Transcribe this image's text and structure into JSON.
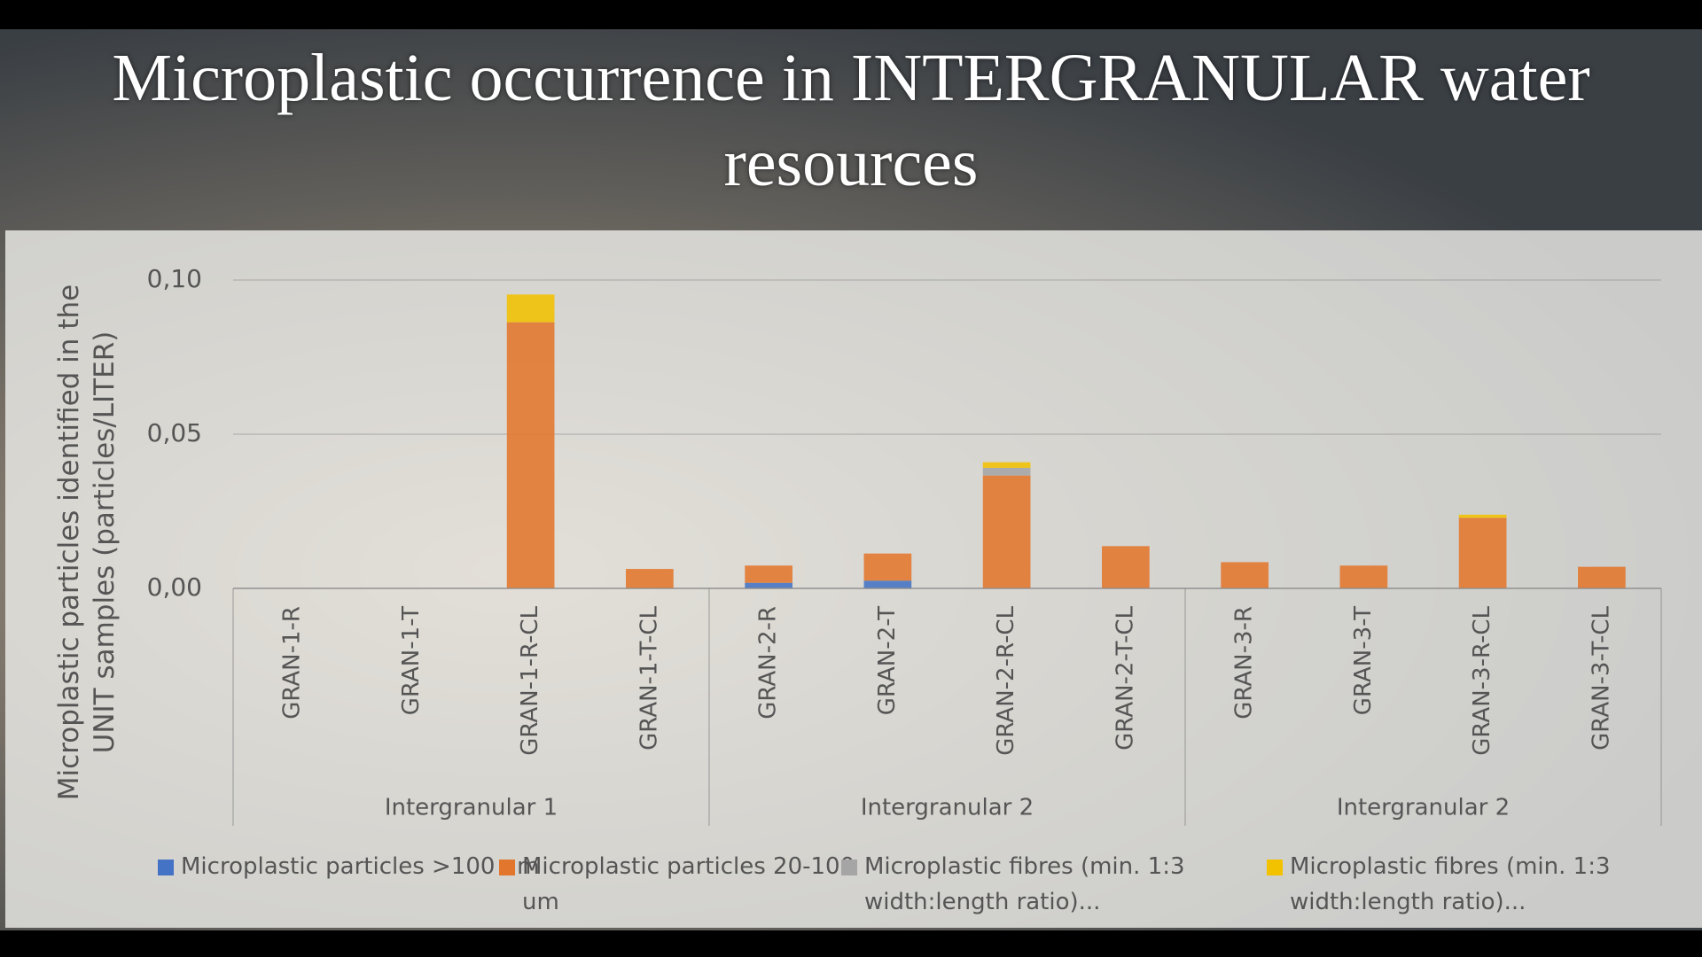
{
  "chart_data": {
    "type": "stacked_bar",
    "title": "Microplastic occurrence in INTERGRANULAR water resources",
    "y_label": "Microplastic particles identified in the UNIT samples (particles/LITER)",
    "categories": [
      "GRAN-1-R",
      "GRAN-1-T",
      "GRAN-1-R-CL",
      "GRAN-1-T-CL",
      "GRAN-2-R",
      "GRAN-2-T",
      "GRAN-2-R-CL",
      "GRAN-2-T-CL",
      "GRAN-3-R",
      "GRAN-3-T",
      "GRAN-3-R-CL",
      "GRAN-3-T-CL"
    ],
    "groups": [
      "Intergranular 1",
      "Intergranular 2",
      "Intergranular 2"
    ],
    "series": [
      {
        "name": "Microplastic particles >100 um",
        "color": "#4472c4",
        "values": [
          0,
          0,
          0,
          0,
          0.0018,
          0.0025,
          0,
          0,
          0,
          0,
          0,
          0
        ]
      },
      {
        "name": "Microplastic particles 20-100 um",
        "color": "#e2762c",
        "values": [
          0,
          0,
          0.0863,
          0.0063,
          0.0056,
          0.0088,
          0.0366,
          0.0137,
          0.0085,
          0.0074,
          0.0229,
          0.007
        ]
      },
      {
        "name": "Microplastic fibres (min. 1:3 width:length ratio)...",
        "color": "#a5a5a5",
        "values": [
          0,
          0,
          0,
          0,
          0,
          0,
          0.0025,
          0,
          0,
          0,
          0,
          0
        ]
      },
      {
        "name": "Microplastic fibres (min. 1:3 width:length ratio)...",
        "color": "#f2c200",
        "values": [
          0,
          0,
          0.009,
          0,
          0,
          0,
          0.0018,
          0,
          0,
          0,
          0.001,
          0
        ]
      }
    ],
    "ylim": [
      0,
      0.1
    ],
    "yticks": [
      {
        "value": 0,
        "label": "0,00"
      },
      {
        "value": 0.05,
        "label": "0,05"
      },
      {
        "value": 0.1,
        "label": "0,10"
      }
    ],
    "grid": true
  }
}
